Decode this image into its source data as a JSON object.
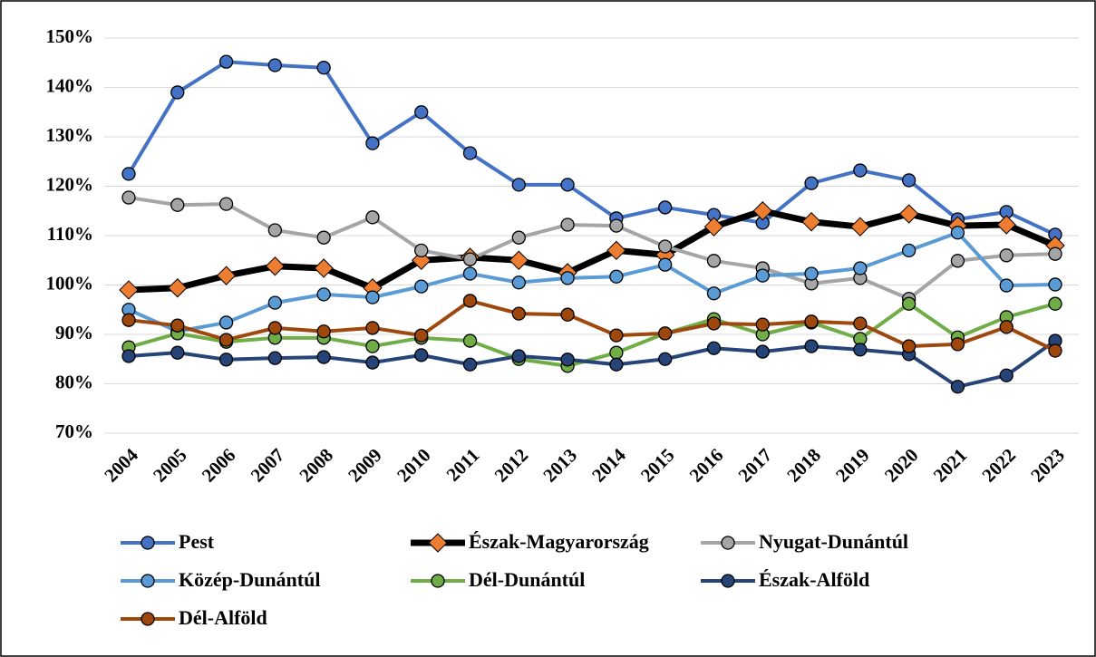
{
  "chart_data": {
    "type": "line",
    "categories": [
      "2004",
      "2005",
      "2006",
      "2007",
      "2008",
      "2009",
      "2010",
      "2011",
      "2012",
      "2013",
      "2014",
      "2015",
      "2016",
      "2017",
      "2018",
      "2019",
      "2020",
      "2021",
      "2022",
      "2023"
    ],
    "series": [
      {
        "name": "Pest",
        "color": "#4472c4",
        "marker": "circle",
        "marker_color": "#4472c4",
        "values": [
          122.5,
          139,
          145.2,
          144.5,
          144,
          128.7,
          135,
          126.7,
          120.3,
          120.3,
          113.5,
          115.7,
          114.2,
          112.6,
          120.6,
          123.2,
          121.2,
          113.3,
          114.8,
          110.2
        ]
      },
      {
        "name": "Észak-Magyarország",
        "color": "#000000",
        "marker": "diamond",
        "marker_color": "#ed7d31",
        "values": [
          99,
          99.4,
          101.9,
          103.8,
          103.4,
          99.4,
          105,
          105.6,
          105,
          102.5,
          107,
          106.1,
          111.8,
          115,
          112.8,
          111.8,
          114.4,
          112,
          112.2,
          108
        ]
      },
      {
        "name": "Nyugat-Dunántúl",
        "color": "#a5a5a5",
        "marker": "circle",
        "marker_color": "#a5a5a5",
        "values": [
          117.7,
          116.2,
          116.4,
          111.1,
          109.6,
          113.7,
          107,
          105.2,
          109.6,
          112.2,
          112,
          107.8,
          104.9,
          103.4,
          100.3,
          101.4,
          97.2,
          104.9,
          106,
          106.3
        ]
      },
      {
        "name": "Közép-Dunántúl",
        "color": "#5b9bd5",
        "marker": "circle",
        "marker_color": "#5b9bd5",
        "values": [
          95,
          90.6,
          92.4,
          96.4,
          98.1,
          97.5,
          99.7,
          102.3,
          100.5,
          101.4,
          101.7,
          104.1,
          98.3,
          101.9,
          102.3,
          103.4,
          107,
          110.6,
          99.9,
          100.1
        ]
      },
      {
        "name": "Dél-Dunántúl",
        "color": "#70ad47",
        "marker": "circle",
        "marker_color": "#70ad47",
        "values": [
          87.4,
          90.2,
          88.5,
          89.3,
          89.3,
          87.6,
          89.3,
          88.7,
          85,
          83.6,
          86.3,
          90.2,
          93.1,
          90,
          92.4,
          89.1,
          96.2,
          89.4,
          93.5,
          96.2
        ]
      },
      {
        "name": "Észak-Alföld",
        "color": "#264478",
        "marker": "circle",
        "marker_color": "#264478",
        "values": [
          85.6,
          86.3,
          84.9,
          85.2,
          85.4,
          84.3,
          85.8,
          83.9,
          85.6,
          84.9,
          83.9,
          85,
          87.2,
          86.5,
          87.6,
          86.9,
          86,
          79.4,
          81.7,
          88.7
        ]
      },
      {
        "name": "Dél-Alföld",
        "color": "#9e480e",
        "marker": "circle",
        "marker_color": "#9e480e",
        "values": [
          92.9,
          91.8,
          88.9,
          91.3,
          90.6,
          91.3,
          89.8,
          96.8,
          94.2,
          94,
          89.8,
          90.2,
          92.2,
          92,
          92.6,
          92.2,
          87.6,
          88,
          91.5,
          86.7
        ]
      }
    ],
    "ylim": [
      70,
      150
    ],
    "yticks": [
      {
        "value": 70,
        "label": "70%"
      },
      {
        "value": 80,
        "label": "80%"
      },
      {
        "value": 90,
        "label": "90%"
      },
      {
        "value": 100,
        "label": "100%"
      },
      {
        "value": 110,
        "label": "110%"
      },
      {
        "value": 120,
        "label": "120%"
      },
      {
        "value": 130,
        "label": "130%"
      },
      {
        "value": 140,
        "label": "140%"
      },
      {
        "value": 150,
        "label": "150%"
      }
    ],
    "grid": true,
    "legend": "bottom"
  }
}
